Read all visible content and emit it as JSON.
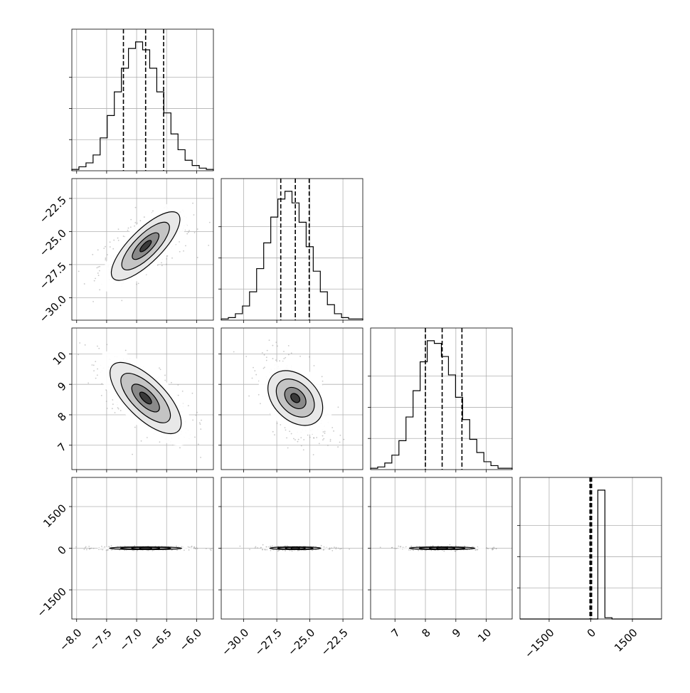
{
  "chart_data": {
    "type": "corner",
    "parameters": [
      {
        "ticks": [
          "−8.0",
          "−7.5",
          "−7.0",
          "−6.5",
          "−6.0"
        ],
        "tick_values": [
          -8.0,
          -7.5,
          -7.0,
          -6.5,
          -6.0
        ],
        "range": [
          -8.08,
          -5.72
        ],
        "q16": -7.22,
        "median": -6.85,
        "q84": -6.55
      },
      {
        "ticks": [
          "−30.0",
          "−27.5",
          "−25.0",
          "−22.5"
        ],
        "tick_values": [
          -30.0,
          -27.5,
          -25.0,
          -22.5
        ],
        "range": [
          -31.7,
          -21.0
        ],
        "q16": -27.2,
        "median": -26.1,
        "q84": -25.05
      },
      {
        "ticks": [
          "7",
          "8",
          "9",
          "10"
        ],
        "tick_values": [
          7,
          8,
          9,
          10
        ],
        "range": [
          6.2,
          10.85
        ],
        "q16": 8.0,
        "median": 8.55,
        "q84": 9.2
      },
      {
        "ticks": [
          "−1500",
          "0",
          "1500"
        ],
        "tick_values": [
          -1500,
          0,
          1500
        ],
        "range": [
          -2550,
          2550
        ],
        "q16": -30,
        "median": 0,
        "q84": 30
      }
    ],
    "histograms": [
      [
        1,
        3,
        6,
        12,
        25,
        42,
        60,
        78,
        93,
        98,
        92,
        78,
        60,
        44,
        28,
        16,
        8,
        4,
        2,
        1
      ],
      [
        1,
        2,
        5,
        11,
        22,
        40,
        60,
        80,
        94,
        100,
        91,
        76,
        57,
        38,
        22,
        12,
        5,
        2,
        1,
        1
      ],
      [
        1,
        2,
        5,
        11,
        22,
        40,
        60,
        82,
        98,
        96,
        86,
        72,
        55,
        38,
        23,
        13,
        6,
        3,
        1,
        1
      ],
      [
        0,
        0,
        0,
        0,
        0,
        0,
        0,
        0,
        0,
        0,
        0,
        100,
        1,
        0,
        0,
        0,
        0,
        0,
        0,
        0
      ]
    ],
    "correlations": {
      "1-0": 0.6,
      "2-0": -0.65,
      "2-1": -0.55,
      "3-0": 0,
      "3-1": 0,
      "3-2": 0
    },
    "grid": true,
    "quantile_lines": "dashed"
  }
}
